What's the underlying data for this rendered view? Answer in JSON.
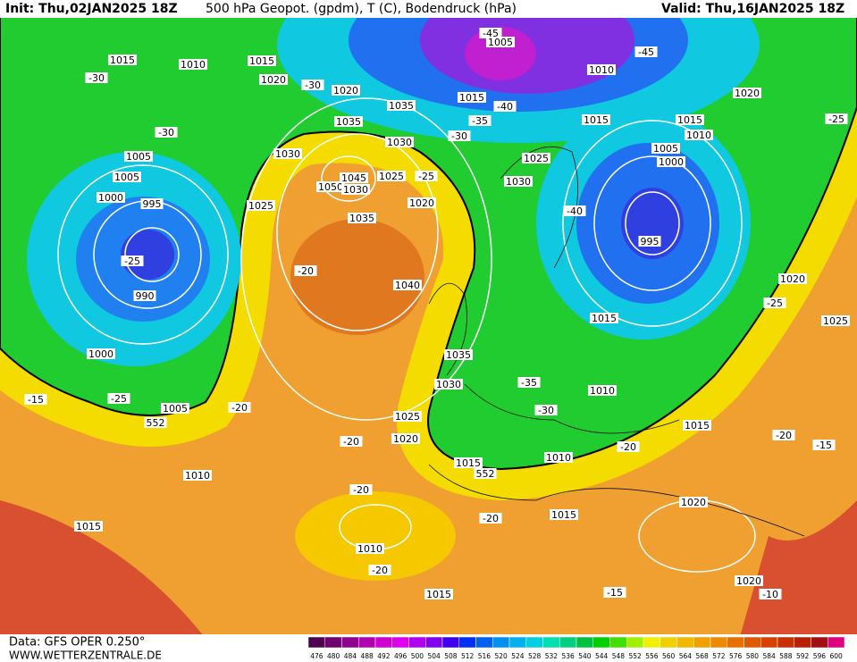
{
  "header": {
    "init": "Init: Thu,02JAN2025 18Z",
    "title": "500 hPa Geopot. (gpdm), T (C), Bodendruck (hPa)",
    "valid": "Valid: Thu,16JAN2025 18Z"
  },
  "footer": {
    "source": "Data: GFS OPER 0.250°",
    "site": "WWW.WETTERZENTRALE.DE"
  },
  "pressure_labels": [
    "1015",
    "1010",
    "1015",
    "1020",
    "1020",
    "1035",
    "1035",
    "1030",
    "1030",
    "1045",
    "1050",
    "1030",
    "1025",
    "1025",
    "1020",
    "1035",
    "1040",
    "1005",
    "1005",
    "1000",
    "995",
    "990",
    "1000",
    "1005",
    "1010",
    "1015",
    "1010",
    "1015",
    "1020",
    "1025",
    "1030",
    "1035",
    "1015",
    "1010",
    "1015",
    "1020",
    "1020",
    "1015",
    "1010",
    "1015",
    "995",
    "1000",
    "1005",
    "1010",
    "1015",
    "1020",
    "1015",
    "1010",
    "1005",
    "1015",
    "1025",
    "1030",
    "1020",
    "1025"
  ],
  "temperature_labels": [
    "-30",
    "-30",
    "-30",
    "-45",
    "-45",
    "-40",
    "-35",
    "-30",
    "-25",
    "-40",
    "-25",
    "-25",
    "-20",
    "-25",
    "-25",
    "-15",
    "-20",
    "-20",
    "-35",
    "-30",
    "-20",
    "-20",
    "-15",
    "-20",
    "-20",
    "-20",
    "-15",
    "-10"
  ],
  "geopotential_labels": [
    "552",
    "552"
  ],
  "colorbar": {
    "ticks": [
      476,
      480,
      484,
      488,
      492,
      496,
      500,
      504,
      508,
      512,
      516,
      520,
      524,
      528,
      532,
      536,
      540,
      544,
      548,
      552,
      556,
      560,
      564,
      568,
      572,
      576,
      580,
      584,
      588,
      592,
      596,
      600
    ],
    "colors": [
      "#500050",
      "#700070",
      "#900090",
      "#b000b0",
      "#d000d0",
      "#e000f0",
      "#b000f0",
      "#8000f0",
      "#4000f0",
      "#0030f0",
      "#0060f0",
      "#0090f0",
      "#00b0f0",
      "#00d0e0",
      "#00e0b0",
      "#00d080",
      "#00c040",
      "#00d000",
      "#40e000",
      "#a0f000",
      "#f0f000",
      "#f0d000",
      "#f0b800",
      "#f0a000",
      "#f08800",
      "#e87000",
      "#e05800",
      "#d84000",
      "#c83000",
      "#b82000",
      "#a01010",
      "#e00080"
    ]
  }
}
